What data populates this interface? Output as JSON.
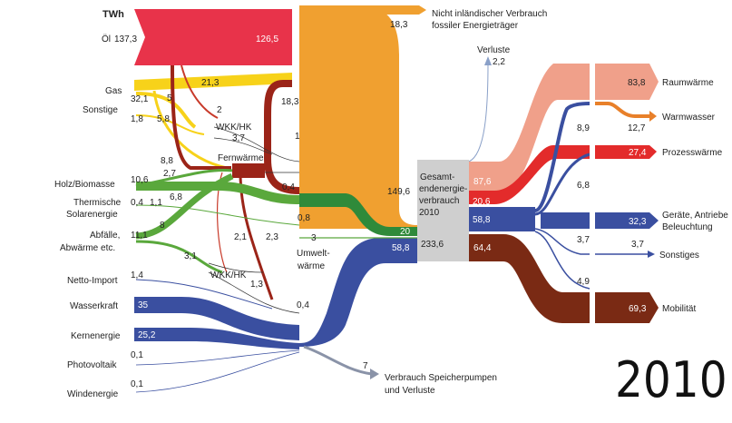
{
  "unit": "TWh",
  "year": "2010",
  "colors": {
    "oil": "#f0a030",
    "oil_dark": "#e8334a",
    "gas": "#f7d21a",
    "renewables": "#5aa83c",
    "heat": "#8b2a1a",
    "electricity": "#3a4fa0",
    "center": "#cfcfcf",
    "raumwaerme": "#f0a08a",
    "warmwasser": "#e8802a",
    "prozess": "#e32b2b",
    "geraete": "#3a4fa0",
    "mobilitaet": "#7a2a14"
  },
  "sources": [
    {
      "id": "oel",
      "label": "Öl",
      "value": "137,3"
    },
    {
      "id": "gas",
      "label": "Gas",
      "value": "32,1"
    },
    {
      "id": "sonstige",
      "label": "Sonstige",
      "value": "1,8"
    },
    {
      "id": "holz",
      "label": "Holz/Biomasse",
      "value": "10,6"
    },
    {
      "id": "thermisch",
      "label": "Thermische\nSolarenergie",
      "value": "0,4"
    },
    {
      "id": "abfaelle",
      "label": "Abfälle,\nAbwärme etc.",
      "value": "11,1"
    },
    {
      "id": "import",
      "label": "Netto-Import",
      "value": "1,4"
    },
    {
      "id": "wasser",
      "label": "Wasserkraft",
      "value": "35"
    },
    {
      "id": "kern",
      "label": "Kernenergie",
      "value": "25,2"
    },
    {
      "id": "pv",
      "label": "Photovoltaik",
      "value": "0,1"
    },
    {
      "id": "wind",
      "label": "Windenergie",
      "value": "0,1"
    }
  ],
  "flow_labels": {
    "oel_main": "126,5",
    "gas_21": "21,3",
    "gas_5": "5",
    "sonst_58": "5,8",
    "wkk_2": "2",
    "wkk_37": "3,7",
    "wkk_183": "18,3",
    "fw_1": "1",
    "fw_88": "8,8",
    "fw_27": "2,7",
    "holz_11": "1,1",
    "holz_68": "6,8",
    "abf_8": "8",
    "abf_31": "3,1",
    "fw_04": "0,4",
    "fw_08": "0,8",
    "el_21": "2,1",
    "el_23": "2,3",
    "wkk2_13": "1,3",
    "el_04": "0,4",
    "umwelt_3": "3",
    "oil_center": "149,6",
    "green_center": "20",
    "blue_center": "58,8",
    "total": "233,6",
    "nicht_183": "18,3",
    "verluste_22": "2,2",
    "speicher_7": "7"
  },
  "node_labels": {
    "wkk1": "WKK/HK",
    "fernwaerme": "Fernwärme",
    "wkk2": "WKK/HK",
    "umwelt": "Umwelt-\nwärme",
    "center": "Gesamt-\nendenergie-\nverbrauch\n2010",
    "nicht": "Nicht inländischer Verbrauch\nfossiler Energieträger",
    "verluste": "Verluste",
    "speicher": "Verbrauch Speicherpumpen\nund Verluste"
  },
  "sinks": [
    {
      "id": "raum",
      "label": "Raumwärme",
      "value": "83,8"
    },
    {
      "id": "warm",
      "label": "Warmwasser",
      "value": "12,7"
    },
    {
      "id": "prozess",
      "label": "Prozesswärme",
      "value": "27,4"
    },
    {
      "id": "geraete",
      "label": "Geräte, Antriebe\nBeleuchtung",
      "value": "32,3"
    },
    {
      "id": "sonst",
      "label": "Sonstiges",
      "value": "3,7"
    },
    {
      "id": "mobil",
      "label": "Mobilität",
      "value": "69,3"
    }
  ],
  "out_labels": {
    "o_876": "87,6",
    "o_206": "20,6",
    "o_588": "58,8",
    "o_644": "64,4",
    "o_89": "8,9",
    "o_127": "12,7",
    "o_68": "6,8",
    "o_37": "3,7",
    "o_49": "4,9"
  }
}
